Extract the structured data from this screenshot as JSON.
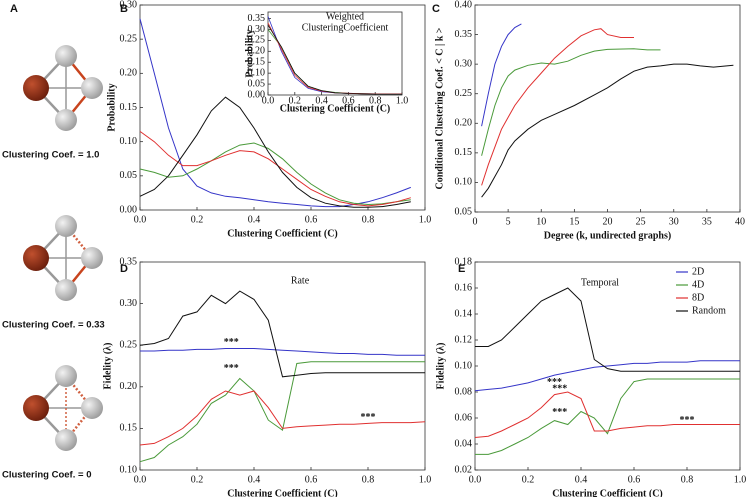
{
  "diagram": {
    "panel": "A",
    "graphs": [
      {
        "label": "Clustering Coef. = 1.0"
      },
      {
        "label": "Clustering Coef. = 0.33"
      },
      {
        "label": "Clustering Coef. = 0"
      }
    ]
  },
  "chart_data": [
    {
      "type": "line",
      "panel": "B",
      "xlabel": "Clustering Coefficient (C)",
      "ylabel": "Probability",
      "xlim": [
        0,
        1
      ],
      "ylim": [
        0,
        0.3
      ],
      "xticks": [
        {
          "value": 0,
          "label": "0.0"
        },
        0.2,
        0.4,
        0.6,
        0.8,
        {
          "value": 1,
          "label": "1.0"
        }
      ],
      "yticks": [
        {
          "value": 0,
          "label": "0.00"
        },
        0.05,
        {
          "value": 0.1,
          "label": "0.10"
        },
        0.15,
        {
          "value": 0.2,
          "label": "0.20"
        },
        0.25,
        {
          "value": 0.3,
          "label": "0.30"
        }
      ],
      "x": [
        0,
        0.05,
        0.1,
        0.15,
        0.2,
        0.25,
        0.3,
        0.35,
        0.4,
        0.45,
        0.5,
        0.55,
        0.6,
        0.65,
        0.7,
        0.75,
        0.8,
        0.85,
        0.9,
        0.95
      ],
      "series": [
        {
          "color": "#3535c8",
          "values": [
            0.28,
            0.2,
            0.12,
            0.06,
            0.035,
            0.025,
            0.02,
            0.018,
            0.015,
            0.012,
            0.01,
            0.008,
            0.006,
            0.005,
            0.005,
            0.008,
            0.012,
            0.018,
            0.025,
            0.033
          ]
        },
        {
          "color": "#4a9a3a",
          "values": [
            0.06,
            0.055,
            0.048,
            0.05,
            0.06,
            0.072,
            0.085,
            0.095,
            0.098,
            0.09,
            0.075,
            0.055,
            0.038,
            0.025,
            0.015,
            0.01,
            0.008,
            0.009,
            0.012,
            0.015
          ]
        },
        {
          "color": "#e03030",
          "values": [
            0.115,
            0.1,
            0.08,
            0.065,
            0.065,
            0.072,
            0.08,
            0.087,
            0.085,
            0.075,
            0.06,
            0.045,
            0.03,
            0.02,
            0.012,
            0.008,
            0.006,
            0.008,
            0.012,
            0.018
          ]
        },
        {
          "color": "#111111",
          "values": [
            0.02,
            0.03,
            0.05,
            0.08,
            0.11,
            0.145,
            0.165,
            0.15,
            0.12,
            0.085,
            0.055,
            0.033,
            0.018,
            0.01,
            0.006,
            0.004,
            0.004,
            0.005,
            0.008,
            0.012
          ]
        }
      ],
      "inset": {
        "type": "line",
        "title": [
          "Weighted",
          "ClusteringCoefficient"
        ],
        "xlabel": "Clustering Coefficient (C)",
        "ylabel": "Probability",
        "xlim": [
          0,
          1
        ],
        "ylim": [
          0,
          0.38
        ],
        "xticks": [
          {
            "value": 0,
            "label": "0.0"
          },
          0.2,
          0.4,
          0.6,
          0.8,
          {
            "value": 1,
            "label": "1.0"
          }
        ],
        "yticks": [
          {
            "value": 0,
            "label": "0.00"
          },
          0.05,
          {
            "value": 0.1,
            "label": "0.10"
          },
          0.15,
          {
            "value": 0.2,
            "label": "0.20"
          },
          0.25,
          {
            "value": 0.3,
            "label": "0.30"
          },
          0.35
        ],
        "x": [
          0,
          0.1,
          0.2,
          0.3,
          0.4,
          0.5,
          0.6,
          0.7,
          0.8,
          0.9,
          1
        ],
        "series": [
          {
            "color": "#3535c8",
            "values": [
              0.36,
              0.2,
              0.08,
              0.03,
              0.015,
              0.01,
              0.008,
              0.006,
              0.005,
              0.005,
              0.005
            ]
          },
          {
            "color": "#4a9a3a",
            "values": [
              0.3,
              0.22,
              0.1,
              0.04,
              0.02,
              0.012,
              0.008,
              0.006,
              0.005,
              0.005,
              0.005
            ]
          },
          {
            "color": "#e03030",
            "values": [
              0.33,
              0.21,
              0.09,
              0.035,
              0.018,
              0.01,
              0.008,
              0.006,
              0.005,
              0.005,
              0.005
            ]
          },
          {
            "color": "#111111",
            "values": [
              0.32,
              0.22,
              0.1,
              0.04,
              0.02,
              0.01,
              0.007,
              0.005,
              0.004,
              0.004,
              0.004
            ]
          }
        ]
      }
    },
    {
      "type": "line",
      "panel": "C",
      "xlabel": "Degree (k, undirected graphs)",
      "ylabel": "Conditional Clustering Coef. < C | k >",
      "xlim": [
        0,
        40
      ],
      "ylim": [
        0.05,
        0.4
      ],
      "xticks": [
        0,
        5,
        10,
        15,
        20,
        25,
        30,
        35,
        40
      ],
      "yticks": [
        0.05,
        {
          "value": 0.1,
          "label": "0.10"
        },
        0.15,
        {
          "value": 0.2,
          "label": "0.20"
        },
        0.25,
        {
          "value": 0.3,
          "label": "0.30"
        },
        0.35,
        {
          "value": 0.4,
          "label": "0.40"
        }
      ],
      "series": [
        {
          "color": "#3535c8",
          "x": [
            1,
            2,
            3,
            4,
            5,
            6,
            7
          ],
          "values": [
            0.195,
            0.25,
            0.3,
            0.33,
            0.35,
            0.362,
            0.368
          ]
        },
        {
          "color": "#4a9a3a",
          "x": [
            1,
            2,
            3,
            4,
            5,
            6,
            8,
            10,
            12,
            14,
            16,
            18,
            20,
            24,
            26,
            28
          ],
          "values": [
            0.145,
            0.19,
            0.23,
            0.26,
            0.28,
            0.29,
            0.298,
            0.302,
            0.3,
            0.305,
            0.315,
            0.322,
            0.325,
            0.326,
            0.324,
            0.324
          ]
        },
        {
          "color": "#e03030",
          "x": [
            1,
            2,
            3,
            4,
            5,
            6,
            8,
            10,
            12,
            14,
            16,
            18,
            19,
            20,
            22,
            24
          ],
          "values": [
            0.095,
            0.13,
            0.16,
            0.19,
            0.21,
            0.23,
            0.26,
            0.285,
            0.31,
            0.33,
            0.348,
            0.358,
            0.36,
            0.35,
            0.345,
            0.345
          ]
        },
        {
          "color": "#111111",
          "x": [
            1,
            2,
            3,
            4,
            5,
            6,
            8,
            10,
            12,
            15,
            18,
            20,
            22,
            24,
            26,
            28,
            30,
            32,
            34,
            36,
            38,
            39
          ],
          "values": [
            0.075,
            0.09,
            0.11,
            0.13,
            0.155,
            0.17,
            0.19,
            0.205,
            0.215,
            0.23,
            0.248,
            0.26,
            0.275,
            0.288,
            0.295,
            0.297,
            0.3,
            0.3,
            0.297,
            0.295,
            0.297,
            0.298
          ]
        }
      ]
    },
    {
      "type": "line",
      "panel": "D",
      "title": "Rate",
      "xlabel": "Clustering Coefficient (C)",
      "ylabel": "Fidelity (λ)",
      "xlim": [
        0,
        1
      ],
      "ylim": [
        0.1,
        0.35
      ],
      "xticks": [
        {
          "value": 0,
          "label": "0.0"
        },
        0.2,
        0.4,
        0.6,
        0.8,
        {
          "value": 1,
          "label": "1.0"
        }
      ],
      "yticks": [
        {
          "value": 0.1,
          "label": "0.10"
        },
        0.15,
        {
          "value": 0.2,
          "label": "0.20"
        },
        0.25,
        {
          "value": 0.3,
          "label": "0.30"
        },
        0.35
      ],
      "x": [
        0,
        0.05,
        0.1,
        0.15,
        0.2,
        0.25,
        0.3,
        0.35,
        0.4,
        0.45,
        0.5,
        0.55,
        0.6,
        0.65,
        0.7,
        0.75,
        0.8,
        0.85,
        0.9,
        0.95,
        1
      ],
      "annotations": [
        "***",
        "***",
        "***"
      ],
      "series": [
        {
          "color": "#3535c8",
          "values": [
            0.243,
            0.243,
            0.244,
            0.244,
            0.245,
            0.245,
            0.246,
            0.246,
            0.246,
            0.245,
            0.244,
            0.243,
            0.242,
            0.241,
            0.24,
            0.24,
            0.239,
            0.239,
            0.238,
            0.238,
            0.238
          ]
        },
        {
          "color": "#4a9a3a",
          "values": [
            0.11,
            0.115,
            0.13,
            0.14,
            0.155,
            0.18,
            0.19,
            0.21,
            0.195,
            0.16,
            0.148,
            0.228,
            0.23,
            0.23,
            0.23,
            0.23,
            0.23,
            0.23,
            0.23,
            0.23,
            0.23
          ]
        },
        {
          "color": "#e03030",
          "values": [
            0.13,
            0.132,
            0.14,
            0.15,
            0.165,
            0.185,
            0.195,
            0.19,
            0.195,
            0.175,
            0.15,
            0.152,
            0.153,
            0.154,
            0.155,
            0.155,
            0.156,
            0.157,
            0.157,
            0.157,
            0.158
          ]
        },
        {
          "color": "#111111",
          "values": [
            0.25,
            0.252,
            0.258,
            0.285,
            0.29,
            0.31,
            0.3,
            0.315,
            0.305,
            0.28,
            0.212,
            0.214,
            0.216,
            0.217,
            0.217,
            0.217,
            0.217,
            0.217,
            0.217,
            0.217,
            0.217
          ]
        }
      ]
    },
    {
      "type": "line",
      "panel": "E",
      "title": "Temporal",
      "xlabel": "Clustering Coefficient (C)",
      "ylabel": "Fidelity (λ)",
      "xlim": [
        0,
        1
      ],
      "ylim": [
        0.02,
        0.18
      ],
      "legend": "upper right",
      "xticks": [
        {
          "value": 0,
          "label": "0.0"
        },
        0.2,
        0.4,
        0.6,
        0.8,
        {
          "value": 1,
          "label": "1.0"
        }
      ],
      "yticks": [
        0.02,
        0.04,
        0.06,
        0.08,
        {
          "value": 0.1,
          "label": "0.10"
        },
        0.12,
        0.14,
        0.16,
        0.18
      ],
      "x": [
        0,
        0.05,
        0.1,
        0.15,
        0.2,
        0.25,
        0.3,
        0.35,
        0.4,
        0.45,
        0.5,
        0.55,
        0.6,
        0.65,
        0.7,
        0.75,
        0.8,
        0.85,
        0.9,
        0.95,
        1
      ],
      "annotations": [
        "***",
        "***",
        "***",
        "***"
      ],
      "series": [
        {
          "name": "2D",
          "color": "#3535c8",
          "values": [
            0.081,
            0.082,
            0.083,
            0.085,
            0.087,
            0.09,
            0.093,
            0.095,
            0.097,
            0.099,
            0.1,
            0.101,
            0.102,
            0.102,
            0.103,
            0.103,
            0.103,
            0.104,
            0.104,
            0.104,
            0.104
          ]
        },
        {
          "name": "4D",
          "color": "#4a9a3a",
          "values": [
            0.032,
            0.032,
            0.035,
            0.04,
            0.045,
            0.052,
            0.058,
            0.055,
            0.065,
            0.06,
            0.048,
            0.075,
            0.088,
            0.09,
            0.09,
            0.09,
            0.09,
            0.09,
            0.09,
            0.09,
            0.09
          ]
        },
        {
          "name": "8D",
          "color": "#e03030",
          "values": [
            0.045,
            0.046,
            0.05,
            0.055,
            0.06,
            0.068,
            0.078,
            0.08,
            0.075,
            0.05,
            0.05,
            0.052,
            0.053,
            0.054,
            0.054,
            0.055,
            0.055,
            0.055,
            0.055,
            0.055,
            0.055
          ]
        },
        {
          "name": "Random",
          "color": "#111111",
          "values": [
            0.115,
            0.115,
            0.12,
            0.13,
            0.14,
            0.15,
            0.155,
            0.16,
            0.15,
            0.105,
            0.098,
            0.096,
            0.096,
            0.096,
            0.096,
            0.096,
            0.096,
            0.096,
            0.096,
            0.096,
            0.096
          ]
        }
      ]
    }
  ]
}
